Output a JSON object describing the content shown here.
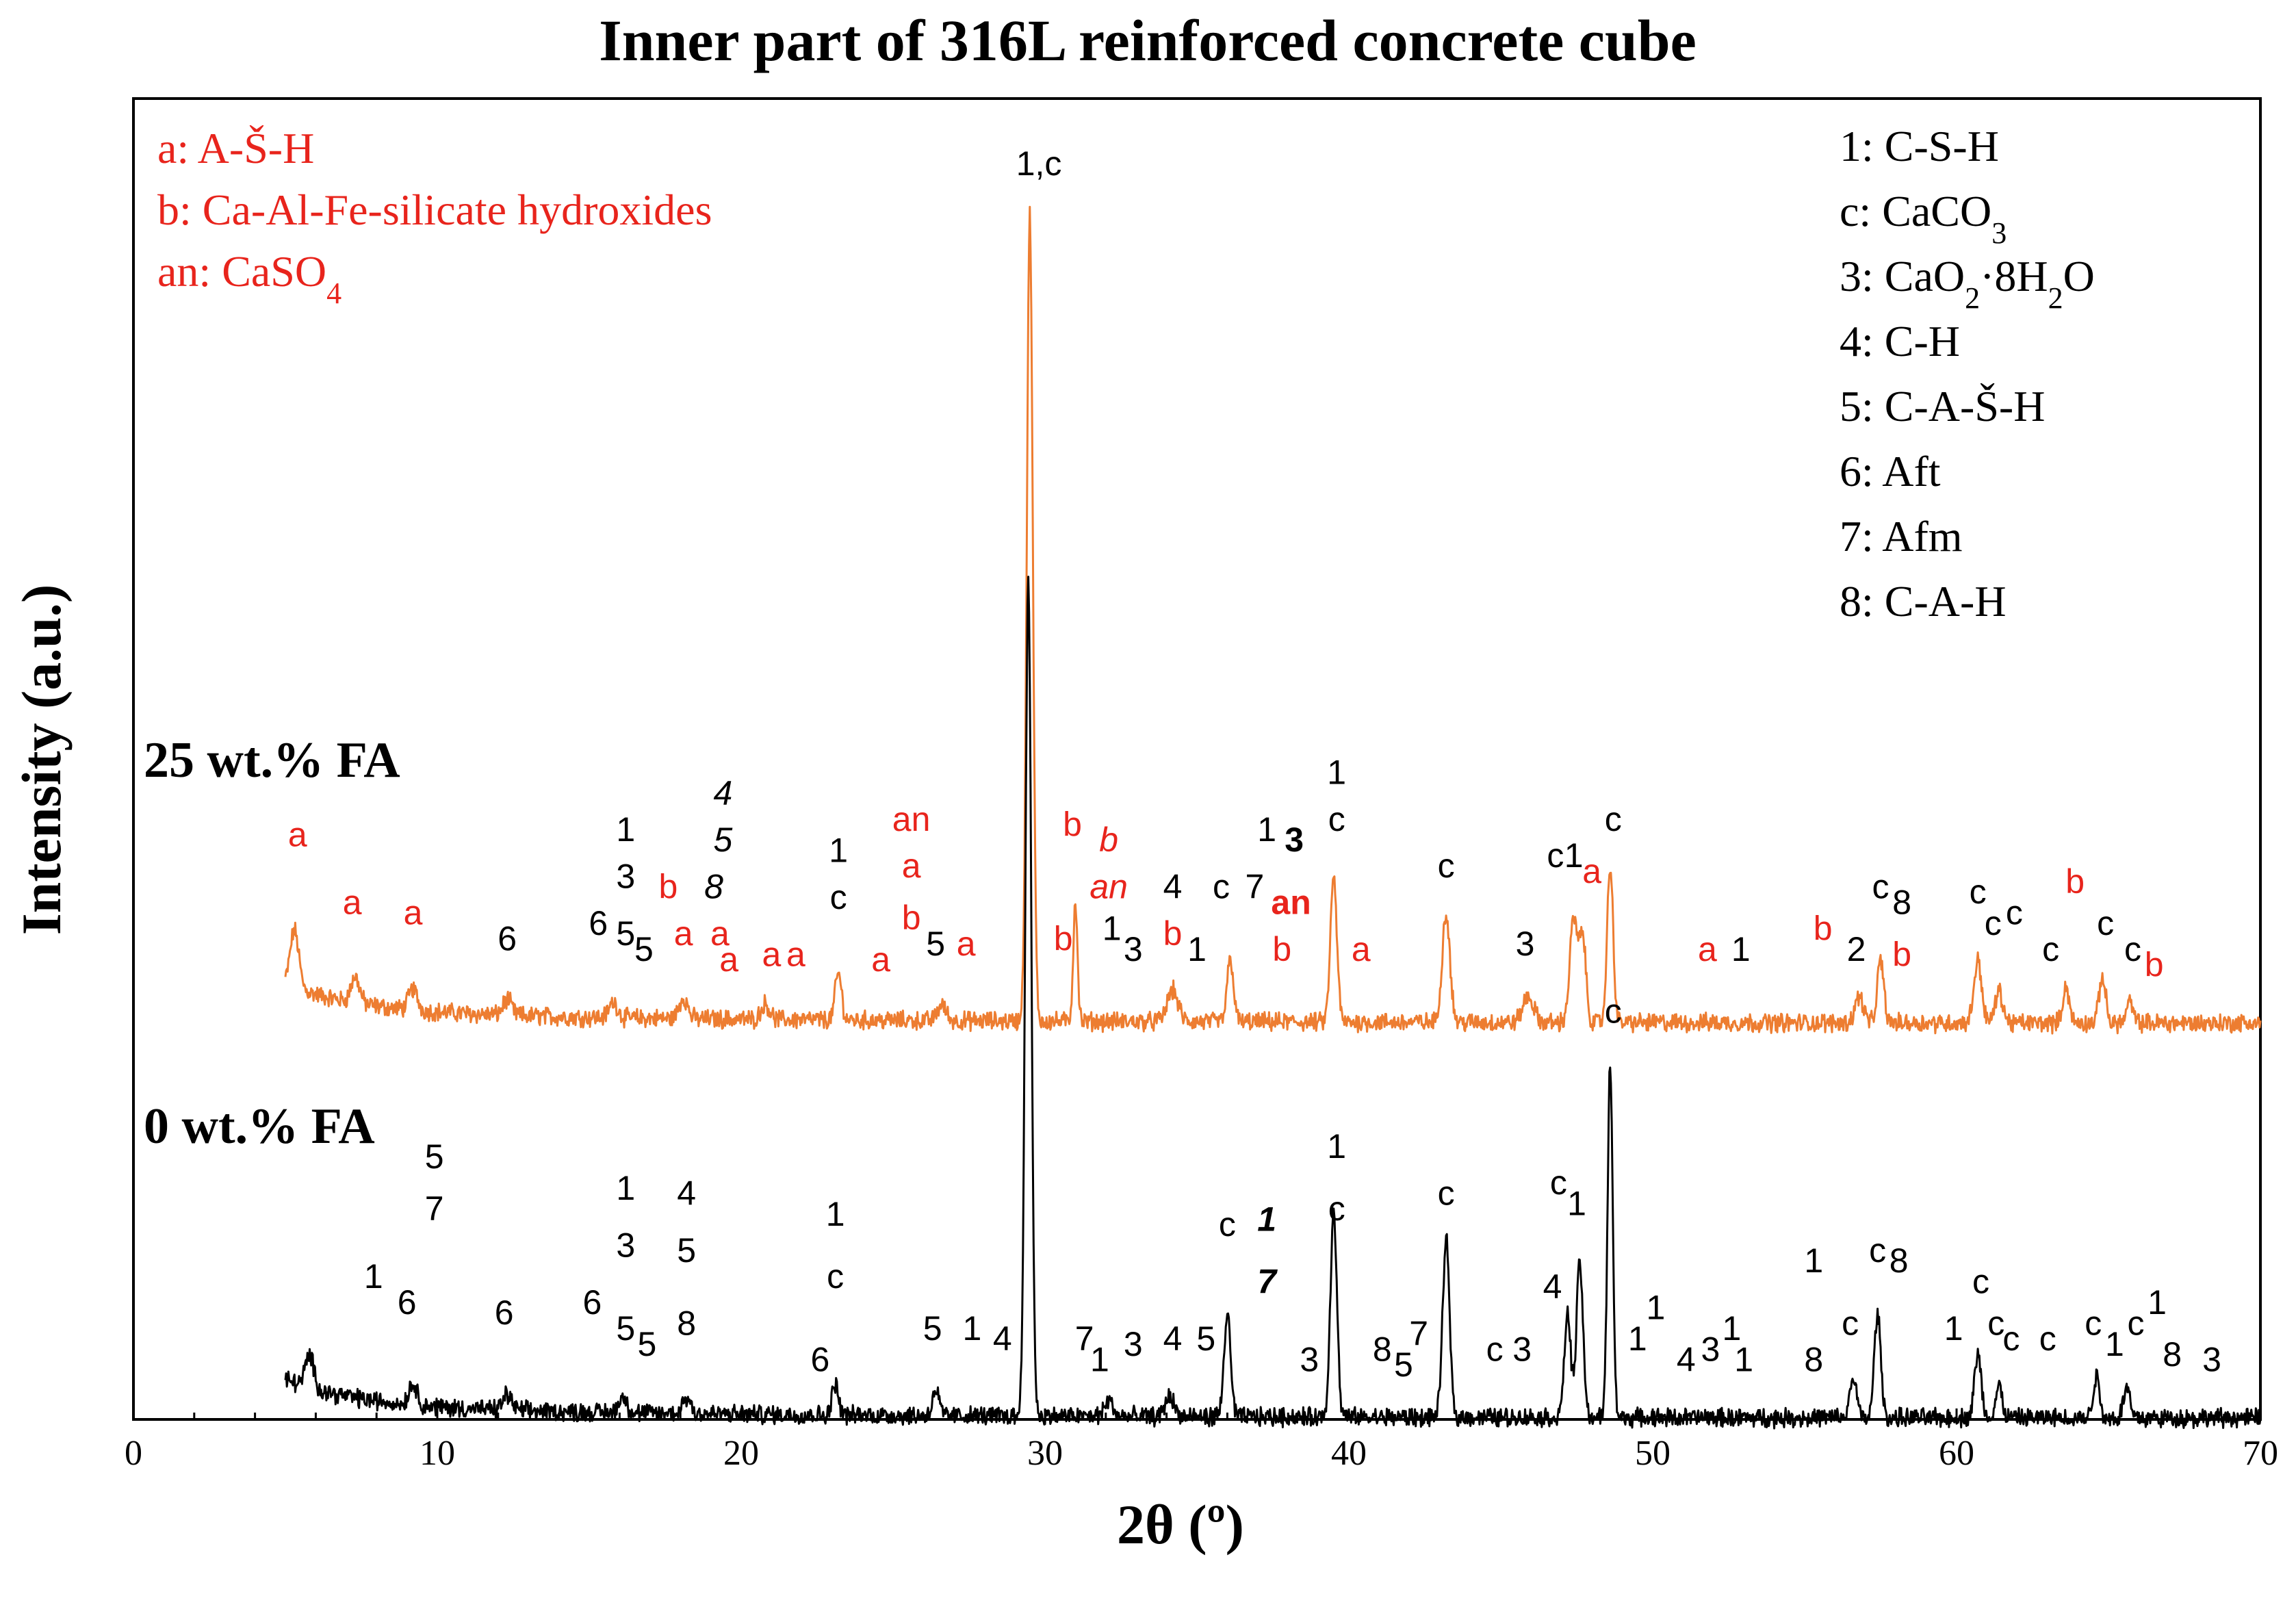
{
  "chart_data": {
    "type": "line",
    "title": "Inner part of 316L reinforced concrete cube",
    "xlabel": "2θ (º)",
    "ylabel": "Intensity (a.u.)",
    "xlim": [
      0,
      70
    ],
    "xticks": [
      "0",
      "10",
      "20",
      "30",
      "40",
      "50",
      "60",
      "70"
    ],
    "series": [
      {
        "name": "25 wt.% FA",
        "color": "#ed7d31",
        "offset": 1.0,
        "peaks": [
          {
            "x": 5.3,
            "h": 0.11,
            "w": 0.2
          },
          {
            "x": 7.3,
            "h": 0.05,
            "w": 0.2
          },
          {
            "x": 9.2,
            "h": 0.04,
            "w": 0.2
          },
          {
            "x": 12.3,
            "h": 0.03,
            "w": 0.2
          },
          {
            "x": 15.8,
            "h": 0.03,
            "w": 0.2
          },
          {
            "x": 18.1,
            "h": 0.04,
            "w": 0.2
          },
          {
            "x": 20.8,
            "h": 0.03,
            "w": 0.2
          },
          {
            "x": 23.2,
            "h": 0.09,
            "w": 0.15
          },
          {
            "x": 26.6,
            "h": 0.03,
            "w": 0.2
          },
          {
            "x": 29.5,
            "h": 1.55,
            "w": 0.14
          },
          {
            "x": 31.0,
            "h": 0.23,
            "w": 0.1
          },
          {
            "x": 34.2,
            "h": 0.06,
            "w": 0.25
          },
          {
            "x": 36.1,
            "h": 0.12,
            "w": 0.15
          },
          {
            "x": 39.5,
            "h": 0.28,
            "w": 0.15
          },
          {
            "x": 43.2,
            "h": 0.21,
            "w": 0.18
          },
          {
            "x": 45.9,
            "h": 0.05,
            "w": 0.25
          },
          {
            "x": 47.4,
            "h": 0.2,
            "w": 0.18
          },
          {
            "x": 47.7,
            "h": 0.16,
            "w": 0.15
          },
          {
            "x": 48.6,
            "h": 0.3,
            "w": 0.14
          },
          {
            "x": 56.8,
            "h": 0.05,
            "w": 0.2
          },
          {
            "x": 57.5,
            "h": 0.12,
            "w": 0.15
          },
          {
            "x": 60.7,
            "h": 0.12,
            "w": 0.18
          },
          {
            "x": 61.4,
            "h": 0.06,
            "w": 0.18
          },
          {
            "x": 63.6,
            "h": 0.07,
            "w": 0.15
          },
          {
            "x": 64.8,
            "h": 0.09,
            "w": 0.15
          },
          {
            "x": 65.7,
            "h": 0.04,
            "w": 0.15
          }
        ]
      },
      {
        "name": "0 wt.% FA",
        "color": "#000000",
        "offset": 0.0,
        "peaks": [
          {
            "x": 5.8,
            "h": 0.06,
            "w": 0.2
          },
          {
            "x": 9.2,
            "h": 0.04,
            "w": 0.2
          },
          {
            "x": 12.3,
            "h": 0.03,
            "w": 0.2
          },
          {
            "x": 16.1,
            "h": 0.03,
            "w": 0.2
          },
          {
            "x": 18.2,
            "h": 0.03,
            "w": 0.2
          },
          {
            "x": 23.1,
            "h": 0.06,
            "w": 0.15
          },
          {
            "x": 26.4,
            "h": 0.05,
            "w": 0.15
          },
          {
            "x": 29.45,
            "h": 1.6,
            "w": 0.14
          },
          {
            "x": 32.1,
            "h": 0.03,
            "w": 0.2
          },
          {
            "x": 34.1,
            "h": 0.04,
            "w": 0.2
          },
          {
            "x": 36.0,
            "h": 0.2,
            "w": 0.15
          },
          {
            "x": 39.5,
            "h": 0.4,
            "w": 0.15
          },
          {
            "x": 43.2,
            "h": 0.34,
            "w": 0.16
          },
          {
            "x": 47.2,
            "h": 0.2,
            "w": 0.15
          },
          {
            "x": 47.6,
            "h": 0.3,
            "w": 0.15
          },
          {
            "x": 48.6,
            "h": 0.68,
            "w": 0.12
          },
          {
            "x": 56.6,
            "h": 0.08,
            "w": 0.15
          },
          {
            "x": 57.4,
            "h": 0.2,
            "w": 0.15
          },
          {
            "x": 60.7,
            "h": 0.12,
            "w": 0.16
          },
          {
            "x": 61.4,
            "h": 0.06,
            "w": 0.15
          },
          {
            "x": 64.6,
            "h": 0.08,
            "w": 0.15
          },
          {
            "x": 65.6,
            "h": 0.06,
            "w": 0.15
          }
        ]
      }
    ],
    "legend_left": [
      {
        "text": "a: A-Š-H",
        "color": "#e8241c"
      },
      {
        "text": "b: Ca-Al-Fe-silicate  hydroxides",
        "color": "#e8241c"
      },
      {
        "text": "an: CaSO",
        "sub": "4",
        "color": "#e8241c"
      }
    ],
    "legend_right": [
      {
        "text": "1: C-S-H"
      },
      {
        "text": "c: CaCO",
        "sub": "3"
      },
      {
        "text": "3: CaO",
        "sub": "2",
        "tail": "·8H",
        "sub2": "2",
        "tail2": "O"
      },
      {
        "text": "4: C-H"
      },
      {
        "text": "5: C-A-Š-H"
      },
      {
        "text": "6: Aft"
      },
      {
        "text": "7: Afm"
      },
      {
        "text": "8: C-A-H"
      }
    ],
    "peak_labels_fa25": [
      {
        "t": "a",
        "c": "red",
        "x": 5.4,
        "y": 0.34
      },
      {
        "t": "a",
        "c": "red",
        "x": 7.2,
        "y": 0.21
      },
      {
        "t": "a",
        "c": "red",
        "x": 9.2,
        "y": 0.19
      },
      {
        "t": "6",
        "c": "black",
        "x": 12.3,
        "y": 0.14
      },
      {
        "t": "1",
        "c": "black",
        "x": 16.2,
        "y": 0.35
      },
      {
        "t": "3",
        "c": "black",
        "x": 16.2,
        "y": 0.26
      },
      {
        "t": "6",
        "c": "black",
        "x": 15.3,
        "y": 0.17
      },
      {
        "t": "5",
        "c": "black",
        "x": 16.2,
        "y": 0.15
      },
      {
        "t": "5",
        "c": "black",
        "x": 16.8,
        "y": 0.12
      },
      {
        "t": "b",
        "c": "red",
        "x": 17.6,
        "y": 0.24
      },
      {
        "t": "a",
        "c": "red",
        "x": 18.1,
        "y": 0.15
      },
      {
        "t": "4",
        "c": "black",
        "x": 19.4,
        "y": 0.42,
        "italic": true
      },
      {
        "t": "5",
        "c": "black",
        "x": 19.4,
        "y": 0.33,
        "italic": true
      },
      {
        "t": "8",
        "c": "black",
        "x": 19.1,
        "y": 0.24,
        "italic": true
      },
      {
        "t": "a",
        "c": "red",
        "x": 19.3,
        "y": 0.15
      },
      {
        "t": "a",
        "c": "red",
        "x": 19.6,
        "y": 0.1
      },
      {
        "t": "a",
        "c": "red",
        "x": 21.0,
        "y": 0.11
      },
      {
        "t": "a",
        "c": "red",
        "x": 21.8,
        "y": 0.11
      },
      {
        "t": "1",
        "c": "black",
        "x": 23.2,
        "y": 0.31
      },
      {
        "t": "c",
        "c": "black",
        "x": 23.2,
        "y": 0.22
      },
      {
        "t": "an",
        "c": "red",
        "x": 25.6,
        "y": 0.37
      },
      {
        "t": "a",
        "c": "red",
        "x": 25.6,
        "y": 0.28
      },
      {
        "t": "b",
        "c": "red",
        "x": 25.6,
        "y": 0.18
      },
      {
        "t": "a",
        "c": "red",
        "x": 24.6,
        "y": 0.1
      },
      {
        "t": "5",
        "c": "black",
        "x": 26.4,
        "y": 0.13
      },
      {
        "t": "a",
        "c": "red",
        "x": 27.4,
        "y": 0.13
      },
      {
        "t": "1,c",
        "c": "black",
        "x": 29.8,
        "y": 1.63,
        "sans": true
      },
      {
        "t": "b",
        "c": "red",
        "x": 30.9,
        "y": 0.36
      },
      {
        "t": "b",
        "c": "red",
        "x": 32.1,
        "y": 0.33,
        "italic": true
      },
      {
        "t": "an",
        "c": "red",
        "x": 32.1,
        "y": 0.24,
        "italic": true
      },
      {
        "t": "b",
        "c": "red",
        "x": 30.6,
        "y": 0.14
      },
      {
        "t": "1",
        "c": "black",
        "x": 32.2,
        "y": 0.16
      },
      {
        "t": "3",
        "c": "black",
        "x": 32.9,
        "y": 0.12
      },
      {
        "t": "4",
        "c": "black",
        "x": 34.2,
        "y": 0.24
      },
      {
        "t": "b",
        "c": "red",
        "x": 34.2,
        "y": 0.15
      },
      {
        "t": "1",
        "c": "black",
        "x": 35.0,
        "y": 0.12
      },
      {
        "t": "c",
        "c": "black",
        "x": 35.8,
        "y": 0.24
      },
      {
        "t": "7",
        "c": "black",
        "x": 36.9,
        "y": 0.24
      },
      {
        "t": "1",
        "c": "black",
        "x": 37.3,
        "y": 0.35
      },
      {
        "t": "3",
        "c": "black",
        "x": 38.2,
        "y": 0.33,
        "bold": true
      },
      {
        "t": "an",
        "c": "red",
        "x": 38.1,
        "y": 0.21,
        "bold": true
      },
      {
        "t": "b",
        "c": "red",
        "x": 37.8,
        "y": 0.12
      },
      {
        "t": "1",
        "c": "black",
        "x": 39.6,
        "y": 0.46
      },
      {
        "t": "c",
        "c": "black",
        "x": 39.6,
        "y": 0.37
      },
      {
        "t": "a",
        "c": "red",
        "x": 40.4,
        "y": 0.12
      },
      {
        "t": "c",
        "c": "black",
        "x": 43.2,
        "y": 0.28
      },
      {
        "t": "3",
        "c": "black",
        "x": 45.8,
        "y": 0.13
      },
      {
        "t": "c",
        "c": "black",
        "x": 46.8,
        "y": 0.3
      },
      {
        "t": "1",
        "c": "black",
        "x": 47.4,
        "y": 0.3
      },
      {
        "t": "a",
        "c": "red",
        "x": 48.0,
        "y": 0.27
      },
      {
        "t": "c",
        "c": "black",
        "x": 48.7,
        "y": 0.37
      },
      {
        "t": "a",
        "c": "red",
        "x": 51.8,
        "y": 0.12
      },
      {
        "t": "1",
        "c": "black",
        "x": 52.9,
        "y": 0.12
      },
      {
        "t": "b",
        "c": "red",
        "x": 55.6,
        "y": 0.16
      },
      {
        "t": "2",
        "c": "black",
        "x": 56.7,
        "y": 0.12
      },
      {
        "t": "c",
        "c": "black",
        "x": 57.5,
        "y": 0.24
      },
      {
        "t": "8",
        "c": "black",
        "x": 58.2,
        "y": 0.21
      },
      {
        "t": "b",
        "c": "red",
        "x": 58.2,
        "y": 0.11
      },
      {
        "t": "c",
        "c": "black",
        "x": 60.7,
        "y": 0.23
      },
      {
        "t": "c",
        "c": "black",
        "x": 61.2,
        "y": 0.17
      },
      {
        "t": "c",
        "c": "black",
        "x": 61.9,
        "y": 0.19
      },
      {
        "t": "c",
        "c": "black",
        "x": 63.1,
        "y": 0.12
      },
      {
        "t": "b",
        "c": "red",
        "x": 63.9,
        "y": 0.25
      },
      {
        "t": "c",
        "c": "black",
        "x": 64.9,
        "y": 0.17
      },
      {
        "t": "c",
        "c": "black",
        "x": 65.8,
        "y": 0.12
      },
      {
        "t": "b",
        "c": "red",
        "x": 66.5,
        "y": 0.09
      }
    ],
    "peak_labels_fa0": [
      {
        "t": "1",
        "c": "black",
        "x": 7.9,
        "y": 0.25
      },
      {
        "t": "5",
        "c": "black",
        "x": 9.9,
        "y": 0.48
      },
      {
        "t": "7",
        "c": "black",
        "x": 9.9,
        "y": 0.38
      },
      {
        "t": "6",
        "c": "black",
        "x": 9.0,
        "y": 0.2
      },
      {
        "t": "6",
        "c": "black",
        "x": 12.2,
        "y": 0.18
      },
      {
        "t": "1",
        "c": "black",
        "x": 16.2,
        "y": 0.42
      },
      {
        "t": "3",
        "c": "black",
        "x": 16.2,
        "y": 0.31
      },
      {
        "t": "6",
        "c": "black",
        "x": 15.1,
        "y": 0.2
      },
      {
        "t": "5",
        "c": "black",
        "x": 16.2,
        "y": 0.15
      },
      {
        "t": "5",
        "c": "black",
        "x": 16.9,
        "y": 0.12
      },
      {
        "t": "4",
        "c": "black",
        "x": 18.2,
        "y": 0.41
      },
      {
        "t": "5",
        "c": "black",
        "x": 18.2,
        "y": 0.3
      },
      {
        "t": "8",
        "c": "black",
        "x": 18.2,
        "y": 0.16
      },
      {
        "t": "1",
        "c": "black",
        "x": 23.1,
        "y": 0.37
      },
      {
        "t": "c",
        "c": "black",
        "x": 23.1,
        "y": 0.25
      },
      {
        "t": "6",
        "c": "black",
        "x": 22.6,
        "y": 0.09
      },
      {
        "t": "5",
        "c": "black",
        "x": 26.3,
        "y": 0.15
      },
      {
        "t": "1",
        "c": "black",
        "x": 27.6,
        "y": 0.15
      },
      {
        "t": "4",
        "c": "black",
        "x": 28.6,
        "y": 0.13
      },
      {
        "t": "7",
        "c": "black",
        "x": 31.3,
        "y": 0.13
      },
      {
        "t": "1",
        "c": "black",
        "x": 31.8,
        "y": 0.09
      },
      {
        "t": "3",
        "c": "black",
        "x": 32.9,
        "y": 0.12
      },
      {
        "t": "4",
        "c": "black",
        "x": 34.2,
        "y": 0.13
      },
      {
        "t": "5",
        "c": "black",
        "x": 35.3,
        "y": 0.13
      },
      {
        "t": "c",
        "c": "black",
        "x": 36.0,
        "y": 0.35
      },
      {
        "t": "1",
        "c": "black",
        "x": 37.3,
        "y": 0.36,
        "italic": true,
        "bold": true
      },
      {
        "t": "7",
        "c": "black",
        "x": 37.3,
        "y": 0.24,
        "italic": true,
        "bold": true
      },
      {
        "t": "3",
        "c": "black",
        "x": 38.7,
        "y": 0.09
      },
      {
        "t": "1",
        "c": "black",
        "x": 39.6,
        "y": 0.5
      },
      {
        "t": "c",
        "c": "black",
        "x": 39.6,
        "y": 0.38
      },
      {
        "t": "8",
        "c": "black",
        "x": 41.1,
        "y": 0.11
      },
      {
        "t": "5",
        "c": "black",
        "x": 41.8,
        "y": 0.08
      },
      {
        "t": "7",
        "c": "black",
        "x": 42.3,
        "y": 0.14
      },
      {
        "t": "c",
        "c": "black",
        "x": 43.2,
        "y": 0.41
      },
      {
        "t": "c",
        "c": "black",
        "x": 44.8,
        "y": 0.11
      },
      {
        "t": "3",
        "c": "black",
        "x": 45.7,
        "y": 0.11
      },
      {
        "t": "c",
        "c": "black",
        "x": 46.9,
        "y": 0.43
      },
      {
        "t": "1",
        "c": "black",
        "x": 47.5,
        "y": 0.39
      },
      {
        "t": "4",
        "c": "black",
        "x": 46.7,
        "y": 0.23
      },
      {
        "t": "c",
        "c": "black",
        "x": 48.7,
        "y": 0.76
      },
      {
        "t": "1",
        "c": "black",
        "x": 49.5,
        "y": 0.13
      },
      {
        "t": "1",
        "c": "black",
        "x": 50.1,
        "y": 0.19
      },
      {
        "t": "4",
        "c": "black",
        "x": 51.1,
        "y": 0.09
      },
      {
        "t": "3",
        "c": "black",
        "x": 51.9,
        "y": 0.11
      },
      {
        "t": "1",
        "c": "black",
        "x": 52.6,
        "y": 0.15
      },
      {
        "t": "1",
        "c": "black",
        "x": 53.0,
        "y": 0.09
      },
      {
        "t": "1",
        "c": "black",
        "x": 55.3,
        "y": 0.28
      },
      {
        "t": "8",
        "c": "black",
        "x": 55.3,
        "y": 0.09
      },
      {
        "t": "c",
        "c": "black",
        "x": 56.5,
        "y": 0.16
      },
      {
        "t": "c",
        "c": "black",
        "x": 57.4,
        "y": 0.3
      },
      {
        "t": "8",
        "c": "black",
        "x": 58.1,
        "y": 0.28
      },
      {
        "t": "1",
        "c": "black",
        "x": 59.9,
        "y": 0.15
      },
      {
        "t": "c",
        "c": "black",
        "x": 60.8,
        "y": 0.24
      },
      {
        "t": "c",
        "c": "black",
        "x": 61.3,
        "y": 0.16
      },
      {
        "t": "c",
        "c": "black",
        "x": 61.8,
        "y": 0.13
      },
      {
        "t": "c",
        "c": "black",
        "x": 63.0,
        "y": 0.13
      },
      {
        "t": "c",
        "c": "black",
        "x": 64.5,
        "y": 0.16
      },
      {
        "t": "1",
        "c": "black",
        "x": 65.2,
        "y": 0.12
      },
      {
        "t": "c",
        "c": "black",
        "x": 65.9,
        "y": 0.16
      },
      {
        "t": "1",
        "c": "black",
        "x": 66.6,
        "y": 0.2
      },
      {
        "t": "8",
        "c": "black",
        "x": 67.1,
        "y": 0.1
      },
      {
        "t": "3",
        "c": "black",
        "x": 68.4,
        "y": 0.09
      }
    ]
  }
}
